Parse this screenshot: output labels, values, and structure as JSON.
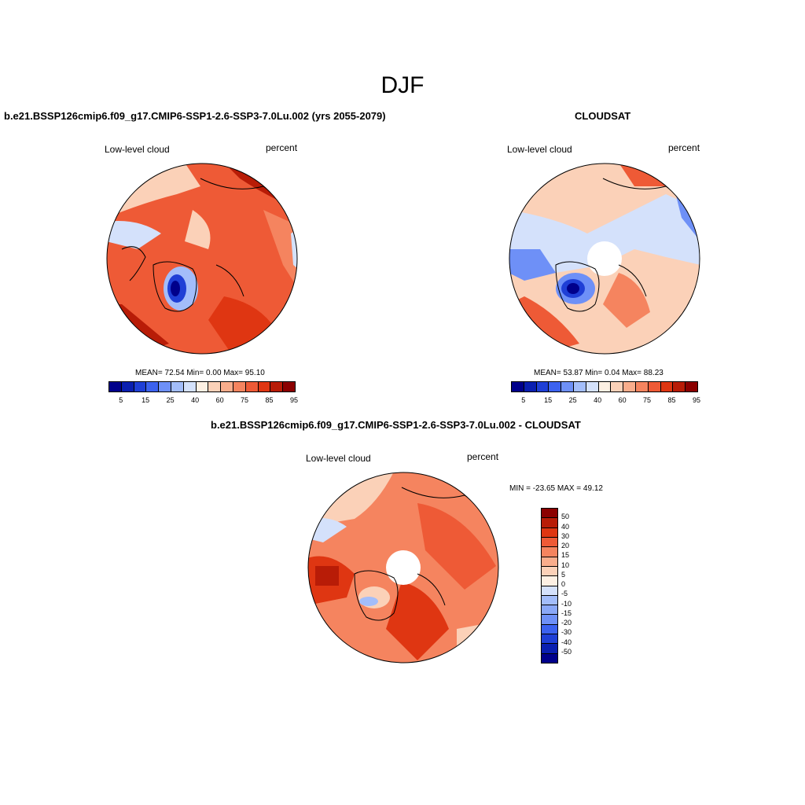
{
  "main_title": "DJF",
  "panels": [
    {
      "title": "b.e21.BSSP126cmip6.f09_g17.CMIP6-SSP1-2.6-SSP3-7.0Lu.002 (yrs 2055-2079)",
      "left_label": "Low-level cloud",
      "right_label": "percent",
      "stats": "MEAN=  72.54  Min=   0.00  Max=  95.10",
      "has_pole_hole": false
    },
    {
      "title": "CLOUDSAT",
      "left_label": "Low-level cloud",
      "right_label": "percent",
      "stats": "MEAN=  53.87  Min=   0.04  Max=  88.23",
      "has_pole_hole": true
    },
    {
      "title": "b.e21.BSSP126cmip6.f09_g17.CMIP6-SSP1-2.6-SSP3-7.0Lu.002 - CLOUDSAT",
      "left_label": "Low-level cloud",
      "right_label": "percent",
      "stats": "MIN = -23.65 MAX =  49.12",
      "has_pole_hole": true
    }
  ],
  "abs_colorbar": {
    "colors": [
      "#00008b",
      "#0a1fb0",
      "#1f3fd6",
      "#3c62ef",
      "#6e90f7",
      "#a3bdfa",
      "#d4e1fb",
      "#fdf0e3",
      "#fbd1b8",
      "#f9ad8c",
      "#f5845f",
      "#ee5a36",
      "#df3612",
      "#b81c07",
      "#8b0000"
    ],
    "ticks": [
      "5",
      "15",
      "25",
      "40",
      "60",
      "75",
      "85",
      "95"
    ]
  },
  "diff_colorbar": {
    "colors": [
      "#8b0000",
      "#b81c07",
      "#df3612",
      "#ee5a36",
      "#f5845f",
      "#f9ad8c",
      "#fbd1b8",
      "#fdf0e3",
      "#d4e1fb",
      "#a3bdfa",
      "#8aa8f7",
      "#6e90f7",
      "#3c62ef",
      "#1f3fd6",
      "#0a1fb0",
      "#00008b"
    ],
    "ticks": [
      "50",
      "40",
      "30",
      "20",
      "15",
      "10",
      "5",
      "0",
      "-5",
      "-10",
      "-15",
      "-20",
      "-30",
      "-40",
      "-50"
    ]
  }
}
